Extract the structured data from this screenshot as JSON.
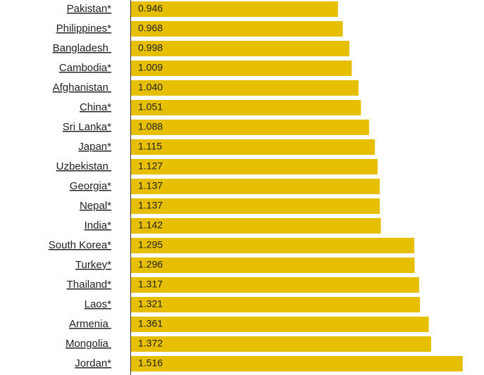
{
  "chart_data": {
    "type": "bar",
    "orientation": "horizontal",
    "categories": [
      "Pakistan*",
      "Philippines*",
      "Bangladesh ",
      "Cambodia*",
      "Afghanistan ",
      "China*",
      "Sri Lanka*",
      "Japan*",
      "Uzbekistan ",
      "Georgia*",
      "Nepal*",
      "India*",
      "South Korea*",
      "Turkey*",
      "Thailand*",
      "Laos*",
      "Armenia ",
      "Mongolia ",
      "Jordan*"
    ],
    "values": [
      0.946,
      0.968,
      0.998,
      1.009,
      1.04,
      1.051,
      1.088,
      1.115,
      1.127,
      1.137,
      1.137,
      1.142,
      1.295,
      1.296,
      1.317,
      1.321,
      1.361,
      1.372,
      1.516
    ],
    "value_labels": [
      "0.946",
      "0.968",
      "0.998",
      "1.009",
      "1.040",
      "1.051",
      "1.088",
      "1.115",
      "1.127",
      "1.137",
      "1.137",
      "1.142",
      "1.295",
      "1.296",
      "1.317",
      "1.321",
      "1.361",
      "1.372",
      "1.516"
    ],
    "color": "#e6bf00"
  }
}
